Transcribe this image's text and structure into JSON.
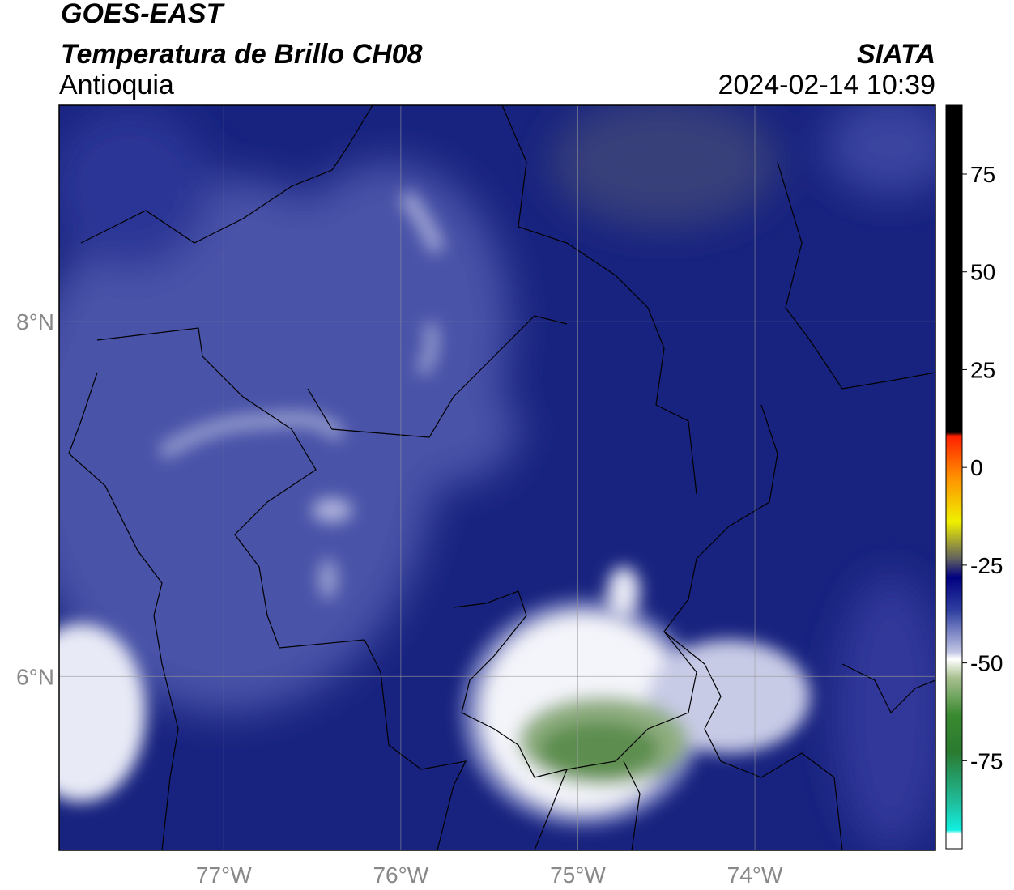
{
  "header": {
    "title": "GOES-EAST",
    "subtitle": "Temperatura de Brillo CH08",
    "region": "Antioquia",
    "source": "SIATA",
    "datetime": "2024-02-14 10:39"
  },
  "map": {
    "xlim": [
      -77.93,
      -72.98
    ],
    "ylim": [
      5.02,
      9.22
    ],
    "xticks": [
      {
        "value": -77,
        "label": "77°W"
      },
      {
        "value": -76,
        "label": "76°W"
      },
      {
        "value": -75,
        "label": "75°W"
      },
      {
        "value": -74,
        "label": "74°W"
      }
    ],
    "yticks": [
      {
        "value": 8,
        "label": "8°N"
      },
      {
        "value": 6,
        "label": "6°N"
      }
    ],
    "grid": true
  },
  "colorbar": {
    "lim": [
      -97.5,
      92.6
    ],
    "ticks": [
      -75,
      -50,
      -25,
      0,
      25,
      50,
      75
    ]
  }
}
